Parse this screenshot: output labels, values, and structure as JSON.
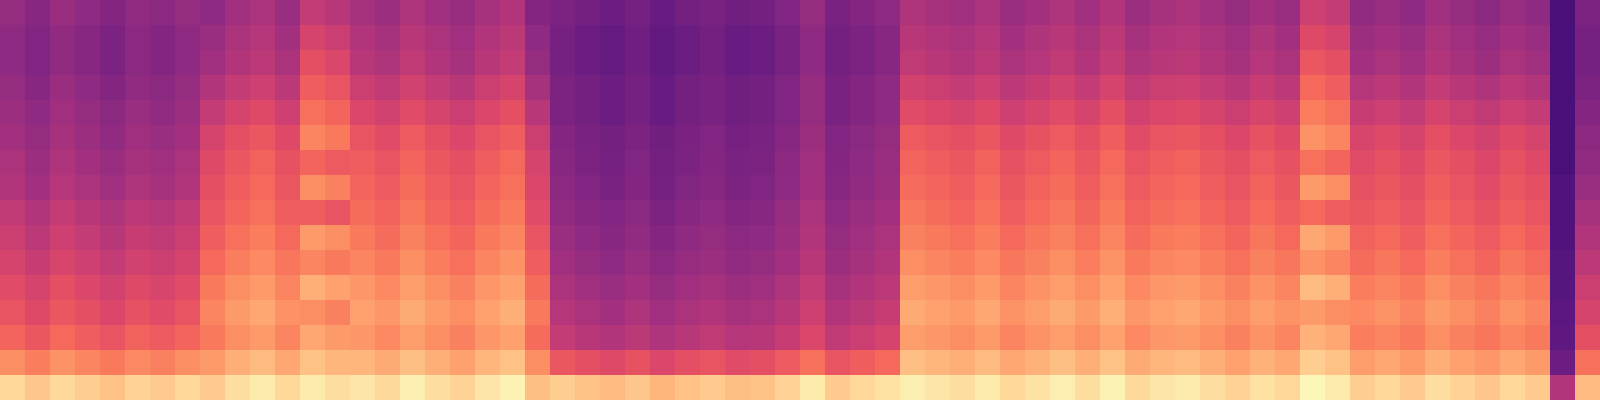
{
  "chart_data": {
    "type": "heatmap",
    "zlim": [
      0,
      100
    ],
    "tick_labels": false,
    "z": [
      [
        32,
        28,
        33,
        30,
        27,
        31,
        29,
        32,
        30,
        35,
        38,
        33,
        45,
        42,
        37,
        34,
        39,
        35,
        32,
        37,
        40,
        27,
        25,
        22,
        20,
        23,
        19,
        22,
        24,
        21,
        22,
        26,
        32,
        24,
        27,
        30,
        39,
        37,
        35,
        38,
        33,
        36,
        39,
        35,
        40,
        34,
        37,
        38,
        35,
        32,
        36,
        33,
        48,
        45,
        31,
        33,
        30,
        35,
        32,
        29,
        33,
        30,
        10,
        25
      ],
      [
        30,
        26,
        31,
        28,
        25,
        29,
        27,
        30,
        33,
        38,
        41,
        36,
        50,
        47,
        40,
        37,
        42,
        38,
        35,
        40,
        43,
        30,
        23,
        20,
        18,
        21,
        17,
        20,
        22,
        19,
        20,
        24,
        30,
        22,
        25,
        28,
        42,
        40,
        38,
        41,
        36,
        39,
        42,
        38,
        43,
        37,
        40,
        41,
        38,
        35,
        39,
        36,
        53,
        50,
        34,
        36,
        33,
        38,
        35,
        32,
        36,
        33,
        10,
        23
      ],
      [
        30,
        26,
        31,
        28,
        25,
        29,
        27,
        30,
        35,
        40,
        43,
        38,
        55,
        52,
        42,
        39,
        44,
        40,
        37,
        42,
        45,
        32,
        23,
        20,
        18,
        21,
        17,
        20,
        22,
        19,
        20,
        24,
        30,
        22,
        25,
        28,
        44,
        42,
        40,
        43,
        38,
        41,
        44,
        40,
        45,
        39,
        42,
        43,
        40,
        37,
        41,
        38,
        58,
        55,
        36,
        38,
        35,
        40,
        37,
        34,
        38,
        35,
        10,
        23
      ],
      [
        32,
        28,
        33,
        30,
        27,
        31,
        29,
        32,
        40,
        45,
        48,
        43,
        60,
        57,
        47,
        44,
        49,
        45,
        42,
        47,
        50,
        37,
        25,
        22,
        20,
        23,
        19,
        22,
        24,
        21,
        22,
        26,
        32,
        24,
        27,
        30,
        49,
        47,
        45,
        48,
        43,
        46,
        49,
        45,
        50,
        44,
        47,
        48,
        45,
        42,
        46,
        43,
        63,
        60,
        41,
        43,
        40,
        45,
        42,
        39,
        43,
        40,
        10,
        25
      ],
      [
        34,
        30,
        35,
        32,
        29,
        33,
        31,
        34,
        45,
        50,
        53,
        48,
        65,
        62,
        52,
        49,
        54,
        50,
        47,
        52,
        55,
        42,
        25,
        22,
        20,
        23,
        19,
        22,
        24,
        21,
        22,
        26,
        32,
        24,
        27,
        30,
        54,
        52,
        50,
        53,
        48,
        51,
        54,
        50,
        55,
        49,
        52,
        53,
        50,
        47,
        51,
        48,
        68,
        65,
        46,
        48,
        45,
        50,
        47,
        44,
        48,
        45,
        10,
        27
      ],
      [
        36,
        32,
        37,
        34,
        31,
        35,
        33,
        36,
        50,
        55,
        58,
        53,
        70,
        67,
        57,
        54,
        59,
        55,
        52,
        57,
        60,
        47,
        27,
        24,
        22,
        25,
        21,
        24,
        26,
        23,
        24,
        28,
        34,
        26,
        29,
        32,
        59,
        57,
        55,
        58,
        53,
        56,
        59,
        55,
        60,
        54,
        57,
        58,
        55,
        52,
        56,
        53,
        73,
        70,
        51,
        53,
        50,
        55,
        52,
        49,
        53,
        50,
        10,
        29
      ],
      [
        38,
        34,
        39,
        36,
        33,
        37,
        35,
        38,
        53,
        58,
        61,
        56,
        62,
        59,
        60,
        57,
        62,
        58,
        55,
        60,
        63,
        50,
        28,
        25,
        23,
        26,
        22,
        25,
        27,
        24,
        25,
        29,
        35,
        27,
        30,
        33,
        62,
        60,
        58,
        61,
        56,
        59,
        62,
        58,
        63,
        57,
        60,
        61,
        58,
        55,
        59,
        56,
        65,
        62,
        54,
        56,
        53,
        58,
        55,
        52,
        56,
        53,
        10,
        31
      ],
      [
        40,
        36,
        41,
        38,
        35,
        39,
        37,
        40,
        55,
        60,
        63,
        58,
        72,
        69,
        62,
        59,
        64,
        60,
        57,
        62,
        65,
        52,
        29,
        26,
        24,
        27,
        23,
        26,
        28,
        25,
        26,
        30,
        36,
        28,
        31,
        34,
        64,
        62,
        60,
        63,
        58,
        61,
        64,
        60,
        65,
        59,
        62,
        63,
        60,
        57,
        61,
        58,
        75,
        72,
        56,
        58,
        55,
        60,
        57,
        54,
        58,
        55,
        12,
        33
      ],
      [
        44,
        40,
        45,
        42,
        39,
        43,
        41,
        44,
        57,
        62,
        65,
        60,
        60,
        57,
        64,
        61,
        66,
        62,
        59,
        64,
        67,
        54,
        31,
        28,
        26,
        29,
        25,
        28,
        30,
        27,
        28,
        32,
        38,
        30,
        33,
        36,
        66,
        64,
        62,
        65,
        60,
        63,
        66,
        62,
        67,
        61,
        64,
        65,
        62,
        59,
        63,
        60,
        63,
        60,
        58,
        60,
        57,
        62,
        59,
        56,
        60,
        57,
        12,
        37
      ],
      [
        47,
        43,
        48,
        45,
        42,
        46,
        44,
        47,
        60,
        65,
        68,
        63,
        75,
        72,
        67,
        64,
        69,
        65,
        62,
        67,
        70,
        57,
        33,
        30,
        28,
        31,
        27,
        30,
        32,
        29,
        30,
        34,
        40,
        32,
        35,
        38,
        69,
        67,
        65,
        68,
        63,
        66,
        69,
        65,
        70,
        64,
        67,
        68,
        65,
        62,
        66,
        63,
        78,
        75,
        61,
        63,
        60,
        65,
        62,
        59,
        63,
        60,
        12,
        40
      ],
      [
        50,
        46,
        51,
        48,
        45,
        49,
        47,
        50,
        63,
        68,
        71,
        66,
        70,
        67,
        70,
        67,
        72,
        68,
        65,
        70,
        73,
        60,
        35,
        32,
        30,
        33,
        29,
        32,
        34,
        31,
        32,
        36,
        42,
        34,
        37,
        40,
        72,
        70,
        68,
        71,
        66,
        69,
        72,
        68,
        73,
        67,
        70,
        71,
        68,
        65,
        69,
        66,
        73,
        70,
        64,
        66,
        63,
        68,
        65,
        62,
        66,
        63,
        14,
        43
      ],
      [
        54,
        50,
        55,
        52,
        49,
        53,
        51,
        54,
        67,
        72,
        75,
        70,
        80,
        77,
        74,
        71,
        76,
        72,
        69,
        74,
        77,
        64,
        38,
        35,
        33,
        36,
        32,
        35,
        37,
        34,
        35,
        39,
        45,
        37,
        40,
        43,
        76,
        74,
        72,
        75,
        70,
        73,
        76,
        72,
        77,
        71,
        74,
        75,
        72,
        69,
        73,
        70,
        83,
        80,
        68,
        70,
        67,
        72,
        69,
        66,
        70,
        67,
        14,
        47
      ],
      [
        57,
        53,
        58,
        55,
        52,
        56,
        54,
        57,
        70,
        75,
        78,
        73,
        72,
        69,
        77,
        74,
        79,
        75,
        72,
        77,
        80,
        67,
        41,
        38,
        36,
        39,
        35,
        38,
        40,
        37,
        38,
        42,
        48,
        40,
        43,
        46,
        79,
        77,
        75,
        78,
        73,
        76,
        79,
        75,
        80,
        74,
        77,
        78,
        75,
        72,
        76,
        73,
        75,
        72,
        71,
        73,
        70,
        75,
        72,
        69,
        73,
        70,
        15,
        50
      ],
      [
        62,
        58,
        63,
        60,
        57,
        61,
        59,
        62,
        67,
        72,
        75,
        70,
        78,
        75,
        74,
        71,
        76,
        72,
        69,
        74,
        77,
        64,
        45,
        42,
        40,
        43,
        39,
        42,
        44,
        41,
        42,
        46,
        52,
        44,
        47,
        50,
        76,
        74,
        72,
        75,
        70,
        73,
        76,
        72,
        77,
        71,
        74,
        75,
        72,
        69,
        73,
        70,
        81,
        78,
        68,
        70,
        67,
        72,
        69,
        66,
        70,
        67,
        16,
        55
      ],
      [
        72,
        68,
        73,
        70,
        67,
        71,
        69,
        72,
        75,
        80,
        83,
        78,
        85,
        82,
        82,
        79,
        84,
        80,
        77,
        82,
        85,
        72,
        58,
        55,
        53,
        56,
        52,
        55,
        57,
        54,
        55,
        59,
        65,
        57,
        60,
        63,
        84,
        82,
        80,
        83,
        78,
        81,
        84,
        80,
        85,
        79,
        82,
        83,
        80,
        77,
        81,
        78,
        88,
        85,
        76,
        78,
        75,
        80,
        77,
        74,
        78,
        75,
        20,
        65
      ],
      [
        90,
        86,
        91,
        88,
        85,
        89,
        87,
        90,
        87,
        92,
        95,
        90,
        95,
        92,
        94,
        91,
        96,
        92,
        89,
        94,
        97,
        84,
        88,
        85,
        83,
        86,
        82,
        85,
        87,
        84,
        85,
        89,
        95,
        87,
        90,
        93,
        96,
        94,
        92,
        95,
        90,
        93,
        96,
        92,
        97,
        91,
        94,
        95,
        92,
        89,
        93,
        90,
        98,
        95,
        88,
        90,
        87,
        92,
        89,
        86,
        90,
        87,
        40,
        83
      ]
    ]
  }
}
